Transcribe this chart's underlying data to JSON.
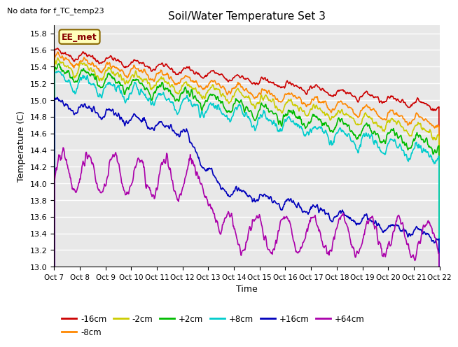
{
  "title": "Soil/Water Temperature Set 3",
  "xlabel": "Time",
  "ylabel": "Temperature (C)",
  "no_data_text": "No data for f_TC_temp23",
  "legend_box_text": "EE_met",
  "ylim": [
    13.0,
    15.9
  ],
  "ytick_min": 13.0,
  "ytick_max": 15.8,
  "ytick_step": 0.2,
  "x_labels": [
    "Oct 7",
    "Oct 8",
    "Oct 9",
    "Oct 10",
    "Oct 11",
    "Oct 12",
    "Oct 13",
    "Oct 14",
    "Oct 15",
    "Oct 16",
    "Oct 17",
    "Oct 18",
    "Oct 19",
    "Oct 20",
    "Oct 21",
    "Oct 22"
  ],
  "series_labels": [
    "-16cm",
    "-8cm",
    "-2cm",
    "+2cm",
    "+8cm",
    "+16cm",
    "+64cm"
  ],
  "series_colors": [
    "#cc0000",
    "#ff8800",
    "#cccc00",
    "#00bb00",
    "#00cccc",
    "#0000bb",
    "#aa00aa"
  ],
  "background_color": "#e8e8e8",
  "grid_color": "#ffffff",
  "n_points": 720,
  "seed": 42
}
